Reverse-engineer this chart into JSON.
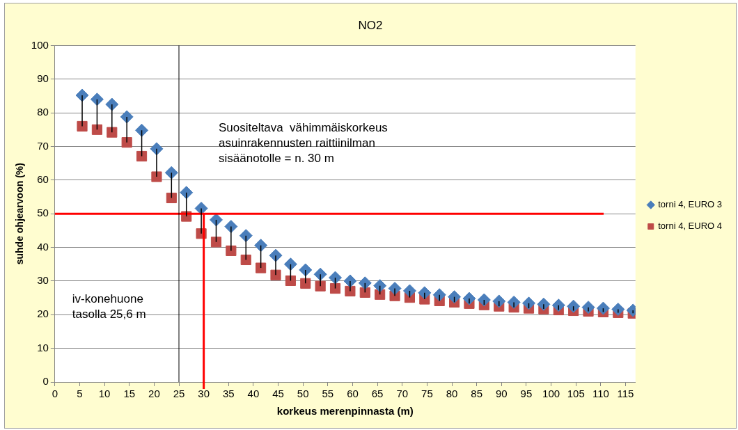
{
  "chart_data": {
    "type": "scatter",
    "title": "NO2",
    "xlabel": "korkeus merenpinnasta (m)",
    "ylabel": "suhde ohjearvoon (%)",
    "x": [
      5.5,
      8.5,
      11.5,
      14.5,
      17.5,
      20.5,
      23.5,
      26.5,
      29.5,
      32.5,
      35.5,
      38.5,
      41.5,
      44.5,
      47.5,
      50.5,
      53.5,
      56.5,
      59.5,
      62.5,
      65.5,
      68.5,
      71.5,
      74.5,
      77.5,
      80.5,
      83.5,
      86.5,
      89.5,
      92.5,
      95.5,
      98.5,
      101.5,
      104.5,
      107.5,
      110.5,
      113.5,
      116.5
    ],
    "series": [
      {
        "name": "torni 4, EURO 3",
        "color": "#4a7ebb",
        "marker": "diamond",
        "values": [
          85.2,
          84,
          82.5,
          78.8,
          74.8,
          69.3,
          62.2,
          56.3,
          51.6,
          48.2,
          46.2,
          43.5,
          40.6,
          37.6,
          35,
          33.3,
          32,
          31,
          30,
          29.4,
          28.6,
          27.8,
          27.1,
          26.5,
          25.9,
          25.3,
          24.8,
          24.4,
          24,
          23.7,
          23.4,
          23.1,
          22.8,
          22.5,
          22.2,
          21.9,
          21.6,
          21.3
        ],
        "errors": [
          [
            76,
            85.2
          ],
          [
            75,
            84
          ],
          [
            74.2,
            82.5
          ],
          [
            71.2,
            78.8
          ],
          [
            67.1,
            74.8
          ],
          [
            61,
            69.3
          ],
          [
            54.7,
            62.2
          ],
          [
            49.2,
            56.3
          ],
          [
            44.1,
            51.6
          ],
          [
            41.6,
            48.2
          ],
          [
            39,
            46.2
          ],
          [
            36.3,
            43.5
          ],
          [
            33.9,
            40.6
          ],
          [
            31.8,
            37.6
          ],
          [
            30.1,
            35
          ],
          [
            29.3,
            33.3
          ],
          [
            28.5,
            32
          ],
          [
            27.8,
            31
          ],
          [
            27,
            30
          ],
          [
            26.6,
            29.4
          ],
          [
            26,
            28.6
          ],
          [
            25.6,
            27.8
          ],
          [
            25.1,
            27.1
          ],
          [
            24.6,
            26.5
          ],
          [
            24.1,
            25.9
          ],
          [
            23.7,
            25.3
          ],
          [
            23.3,
            24.8
          ],
          [
            22.9,
            24.4
          ],
          [
            22.5,
            24
          ],
          [
            22.2,
            23.7
          ],
          [
            21.9,
            23.4
          ],
          [
            21.7,
            23.1
          ],
          [
            21.4,
            22.8
          ],
          [
            21.2,
            22.5
          ],
          [
            21,
            22.2
          ],
          [
            20.8,
            21.9
          ],
          [
            20.6,
            21.6
          ],
          [
            20.4,
            21.3
          ]
        ]
      },
      {
        "name": "torni 4, EURO 4",
        "color": "#be4b48",
        "marker": "square",
        "values": [
          76,
          75,
          74.2,
          71.2,
          67.1,
          61,
          54.7,
          49.2,
          44.1,
          41.6,
          39,
          36.3,
          33.9,
          31.8,
          30.1,
          29.3,
          28.5,
          27.8,
          27,
          26.6,
          26,
          25.6,
          25.1,
          24.6,
          24.1,
          23.7,
          23.3,
          22.9,
          22.5,
          22.2,
          21.9,
          21.7,
          21.4,
          21.2,
          21,
          20.8,
          20.6,
          20.4
        ]
      }
    ],
    "xlim": [
      0,
      117
    ],
    "xticks": [
      0,
      5,
      10,
      15,
      20,
      25,
      30,
      35,
      40,
      45,
      50,
      55,
      60,
      65,
      70,
      75,
      80,
      85,
      90,
      95,
      100,
      105,
      110,
      115
    ],
    "ylim": [
      0,
      100
    ],
    "yticks": [
      0,
      10,
      20,
      30,
      40,
      50,
      60,
      70,
      80,
      90,
      100
    ],
    "grid": "y",
    "legend": "right",
    "ref_lines": [
      {
        "axis": "y",
        "value": 50,
        "color": "#ff0000"
      },
      {
        "axis": "x",
        "value": 25,
        "color": "#000000"
      },
      {
        "axis": "x",
        "value": 30,
        "color": "#ff0000"
      }
    ],
    "annotations": [
      "Suositeltava  vähimmäiskorkeus\nasuinrakennusten raittiinilman\nsisäänotolle = n. 30 m",
      "iv-konehuone\ntasolla 25,6 m"
    ]
  }
}
